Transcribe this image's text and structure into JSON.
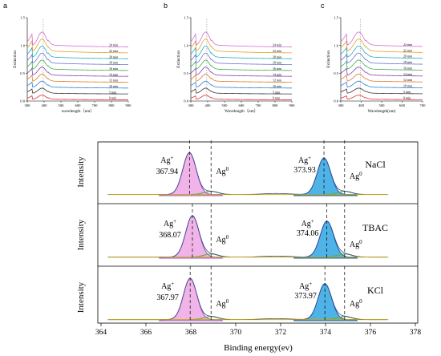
{
  "uv_panels": [
    {
      "letter": "a",
      "xlabel": "wavelength（nm）",
      "ylabel": "Extinction",
      "xticks": [
        300,
        400,
        500,
        600,
        700,
        800,
        900
      ],
      "yticks": [
        "0.0",
        "0.5",
        "1.0",
        "1.5"
      ],
      "times": [
        "0 min",
        "5 min",
        "10 min",
        "12 min",
        "14 min",
        "16 min",
        "18 min",
        "20 min",
        "22 min",
        "24 min"
      ]
    },
    {
      "letter": "b",
      "xlabel": "Wavelength（nm）",
      "ylabel": "Extinction",
      "xticks": [
        300,
        400,
        500,
        600,
        700,
        800,
        900
      ],
      "yticks": [
        "0.0",
        "0.5",
        "1.0",
        "1.5"
      ],
      "times": [
        "0 min",
        "5 min",
        "10 min",
        "12 min",
        "14 min",
        "16 min",
        "18 min",
        "20 min",
        "22 min",
        "24 min"
      ]
    },
    {
      "letter": "c",
      "xlabel": "Wavelength(nm)",
      "ylabel": "Extinction",
      "xticks": [
        300,
        400,
        500,
        600,
        700
      ],
      "yticks": [
        "0.0",
        "0.5",
        "1.0",
        "1.5"
      ],
      "times": [
        "0 min",
        "5 min",
        "10 min",
        "12 min",
        "14 min",
        "16 min",
        "18 min",
        "20 min",
        "22 min",
        "24 min"
      ]
    }
  ],
  "xps": {
    "xlabel": "Binding energy(ev)",
    "ylabel": "Intensity",
    "xticks": [
      364,
      366,
      368,
      370,
      372,
      374,
      376,
      378
    ],
    "xlim": [
      364,
      378
    ],
    "ag_zero_label": "Ag0",
    "ag_plus_label": "Ag+",
    "panels": [
      {
        "sample": "NaCl",
        "peak1": "367.94",
        "peak2": "373.93"
      },
      {
        "sample": "TBAC",
        "peak1": "368.07",
        "peak2": "374.06"
      },
      {
        "sample": "KCl",
        "peak1": "367.97",
        "peak2": "373.97"
      }
    ]
  },
  "colors": {
    "ag_plus_fill_1": "#f0b4e8",
    "ag_plus_line_1": "#9b59c8",
    "ag_plus_fill_2": "#4fb3e8",
    "ag_plus_line_2": "#2060a8",
    "ag_zero": "#6aa84f",
    "baseline": "#c9a200",
    "uv_series": [
      "#e03030",
      "#333333",
      "#2a7fd4",
      "#e07a20",
      "#8a3fb0",
      "#3bb04a",
      "#7070d0",
      "#20b0c0",
      "#e8a030",
      "#d070d0",
      "#606060",
      "#b8b030"
    ]
  },
  "chart_data": [
    {
      "type": "line",
      "title": "a",
      "xlabel": "wavelength（nm）",
      "ylabel": "Extinction",
      "xlim": [
        300,
        900
      ],
      "ylim": [
        0,
        1.5
      ],
      "series": [
        {
          "name": "0 min",
          "x": [
            300,
            380,
            400,
            500,
            700,
            900
          ],
          "values": [
            0.05,
            0.06,
            0.05,
            0.03,
            0.01,
            0.0
          ]
        },
        {
          "name": "5 min",
          "x": [
            300,
            380,
            400,
            500,
            700,
            900
          ],
          "values": [
            0.2,
            0.25,
            0.2,
            0.12,
            0.1,
            0.08
          ]
        },
        {
          "name": "10 min",
          "x": [
            300,
            380,
            400,
            500,
            700,
            900
          ],
          "values": [
            0.3,
            0.4,
            0.35,
            0.22,
            0.18,
            0.16
          ]
        },
        {
          "name": "12 min",
          "x": [
            300,
            380,
            400,
            500,
            700,
            900
          ],
          "values": [
            0.4,
            0.55,
            0.5,
            0.32,
            0.27,
            0.25
          ]
        },
        {
          "name": "14 min",
          "x": [
            300,
            380,
            400,
            500,
            700,
            900
          ],
          "values": [
            0.5,
            0.7,
            0.62,
            0.42,
            0.36,
            0.33
          ]
        },
        {
          "name": "16 min",
          "x": [
            300,
            380,
            400,
            500,
            700,
            900
          ],
          "values": [
            0.6,
            0.85,
            0.75,
            0.52,
            0.45,
            0.42
          ]
        },
        {
          "name": "18 min",
          "x": [
            300,
            380,
            400,
            500,
            700,
            900
          ],
          "values": [
            0.72,
            1.0,
            0.9,
            0.62,
            0.54,
            0.5
          ]
        },
        {
          "name": "20 min",
          "x": [
            300,
            380,
            400,
            500,
            700,
            900
          ],
          "values": [
            0.85,
            1.15,
            1.05,
            0.74,
            0.64,
            0.6
          ]
        },
        {
          "name": "22 min",
          "x": [
            300,
            380,
            400,
            500,
            700,
            900
          ],
          "values": [
            0.98,
            1.3,
            1.2,
            0.85,
            0.74,
            0.7
          ]
        },
        {
          "name": "24 min",
          "x": [
            300,
            380,
            400,
            500,
            700,
            900
          ],
          "values": [
            1.12,
            1.45,
            1.35,
            0.96,
            0.84,
            0.8
          ]
        }
      ]
    },
    {
      "type": "line",
      "title": "b",
      "xlabel": "Wavelength（nm）",
      "ylabel": "Extinction",
      "xlim": [
        300,
        900
      ],
      "ylim": [
        0,
        1.5
      ],
      "series": [
        {
          "name": "0 min",
          "x": [
            300,
            380,
            400,
            500,
            700,
            900
          ],
          "values": [
            0.05,
            0.06,
            0.05,
            0.03,
            0.01,
            0.0
          ]
        },
        {
          "name": "5 min",
          "x": [
            300,
            380,
            400,
            500,
            700,
            900
          ],
          "values": [
            0.2,
            0.25,
            0.21,
            0.13,
            0.1,
            0.09
          ]
        },
        {
          "name": "10 min",
          "x": [
            300,
            380,
            400,
            500,
            700,
            900
          ],
          "values": [
            0.3,
            0.4,
            0.35,
            0.23,
            0.19,
            0.17
          ]
        },
        {
          "name": "12 min",
          "x": [
            300,
            380,
            400,
            500,
            700,
            900
          ],
          "values": [
            0.42,
            0.56,
            0.5,
            0.33,
            0.28,
            0.26
          ]
        },
        {
          "name": "14 min",
          "x": [
            300,
            380,
            400,
            500,
            700,
            900
          ],
          "values": [
            0.52,
            0.7,
            0.63,
            0.43,
            0.37,
            0.34
          ]
        },
        {
          "name": "16 min",
          "x": [
            300,
            380,
            400,
            500,
            700,
            900
          ],
          "values": [
            0.62,
            0.86,
            0.76,
            0.53,
            0.46,
            0.43
          ]
        },
        {
          "name": "18 min",
          "x": [
            300,
            380,
            400,
            500,
            700,
            900
          ],
          "values": [
            0.74,
            1.0,
            0.9,
            0.63,
            0.55,
            0.51
          ]
        },
        {
          "name": "20 min",
          "x": [
            300,
            380,
            400,
            500,
            700,
            900
          ],
          "values": [
            0.86,
            1.16,
            1.06,
            0.74,
            0.65,
            0.61
          ]
        },
        {
          "name": "22 min",
          "x": [
            300,
            380,
            400,
            500,
            700,
            900
          ],
          "values": [
            0.99,
            1.31,
            1.2,
            0.86,
            0.75,
            0.71
          ]
        },
        {
          "name": "24 min",
          "x": [
            300,
            380,
            400,
            500,
            700,
            900
          ],
          "values": [
            1.13,
            1.48,
            1.36,
            0.97,
            0.85,
            0.81
          ]
        }
      ]
    },
    {
      "type": "line",
      "title": "c",
      "xlabel": "Wavelength(nm)",
      "ylabel": "Extinction",
      "xlim": [
        300,
        700
      ],
      "ylim": [
        0,
        1.5
      ],
      "series": [
        {
          "name": "0 min",
          "x": [
            300,
            380,
            400,
            500,
            600,
            700
          ],
          "values": [
            0.05,
            0.06,
            0.05,
            0.03,
            0.02,
            0.01
          ]
        },
        {
          "name": "5 min",
          "x": [
            300,
            380,
            400,
            500,
            600,
            700
          ],
          "values": [
            0.2,
            0.24,
            0.2,
            0.13,
            0.11,
            0.1
          ]
        },
        {
          "name": "10 min",
          "x": [
            300,
            380,
            400,
            500,
            600,
            700
          ],
          "values": [
            0.32,
            0.4,
            0.35,
            0.24,
            0.21,
            0.2
          ]
        },
        {
          "name": "12 min",
          "x": [
            300,
            380,
            400,
            500,
            600,
            700
          ],
          "values": [
            0.44,
            0.55,
            0.49,
            0.34,
            0.3,
            0.29
          ]
        },
        {
          "name": "14 min",
          "x": [
            300,
            380,
            400,
            500,
            600,
            700
          ],
          "values": [
            0.55,
            0.7,
            0.62,
            0.44,
            0.4,
            0.38
          ]
        },
        {
          "name": "16 min",
          "x": [
            300,
            380,
            400,
            500,
            600,
            700
          ],
          "values": [
            0.66,
            0.84,
            0.75,
            0.54,
            0.49,
            0.47
          ]
        },
        {
          "name": "18 min",
          "x": [
            300,
            380,
            400,
            500,
            600,
            700
          ],
          "values": [
            0.78,
            0.98,
            0.88,
            0.64,
            0.58,
            0.56
          ]
        },
        {
          "name": "20 min",
          "x": [
            300,
            380,
            400,
            500,
            600,
            700
          ],
          "values": [
            0.9,
            1.12,
            1.02,
            0.75,
            0.68,
            0.66
          ]
        },
        {
          "name": "22 min",
          "x": [
            300,
            380,
            400,
            500,
            600,
            700
          ],
          "values": [
            1.02,
            1.27,
            1.16,
            0.86,
            0.78,
            0.76
          ]
        },
        {
          "name": "24 min",
          "x": [
            300,
            380,
            400,
            500,
            600,
            700
          ],
          "values": [
            1.15,
            1.42,
            1.3,
            0.97,
            0.89,
            0.86
          ]
        }
      ]
    },
    {
      "type": "line",
      "xlabel": "Binding energy(ev)",
      "ylabel": "Intensity",
      "xlim": [
        364,
        378
      ],
      "series": [
        {
          "name": "NaCl",
          "peaks": [
            {
              "label": "Ag+",
              "x": 367.94
            },
            {
              "label": "Ag0",
              "x": 368.9
            },
            {
              "label": "Ag+",
              "x": 373.93
            },
            {
              "label": "Ag0",
              "x": 374.9
            }
          ]
        },
        {
          "name": "TBAC",
          "peaks": [
            {
              "label": "Ag+",
              "x": 368.07
            },
            {
              "label": "Ag0",
              "x": 368.9
            },
            {
              "label": "Ag+",
              "x": 374.06
            },
            {
              "label": "Ag0",
              "x": 374.9
            }
          ]
        },
        {
          "name": "KCl",
          "peaks": [
            {
              "label": "Ag+",
              "x": 367.97
            },
            {
              "label": "Ag0",
              "x": 368.9
            },
            {
              "label": "Ag+",
              "x": 373.97
            },
            {
              "label": "Ag0",
              "x": 374.9
            }
          ]
        }
      ]
    }
  ]
}
